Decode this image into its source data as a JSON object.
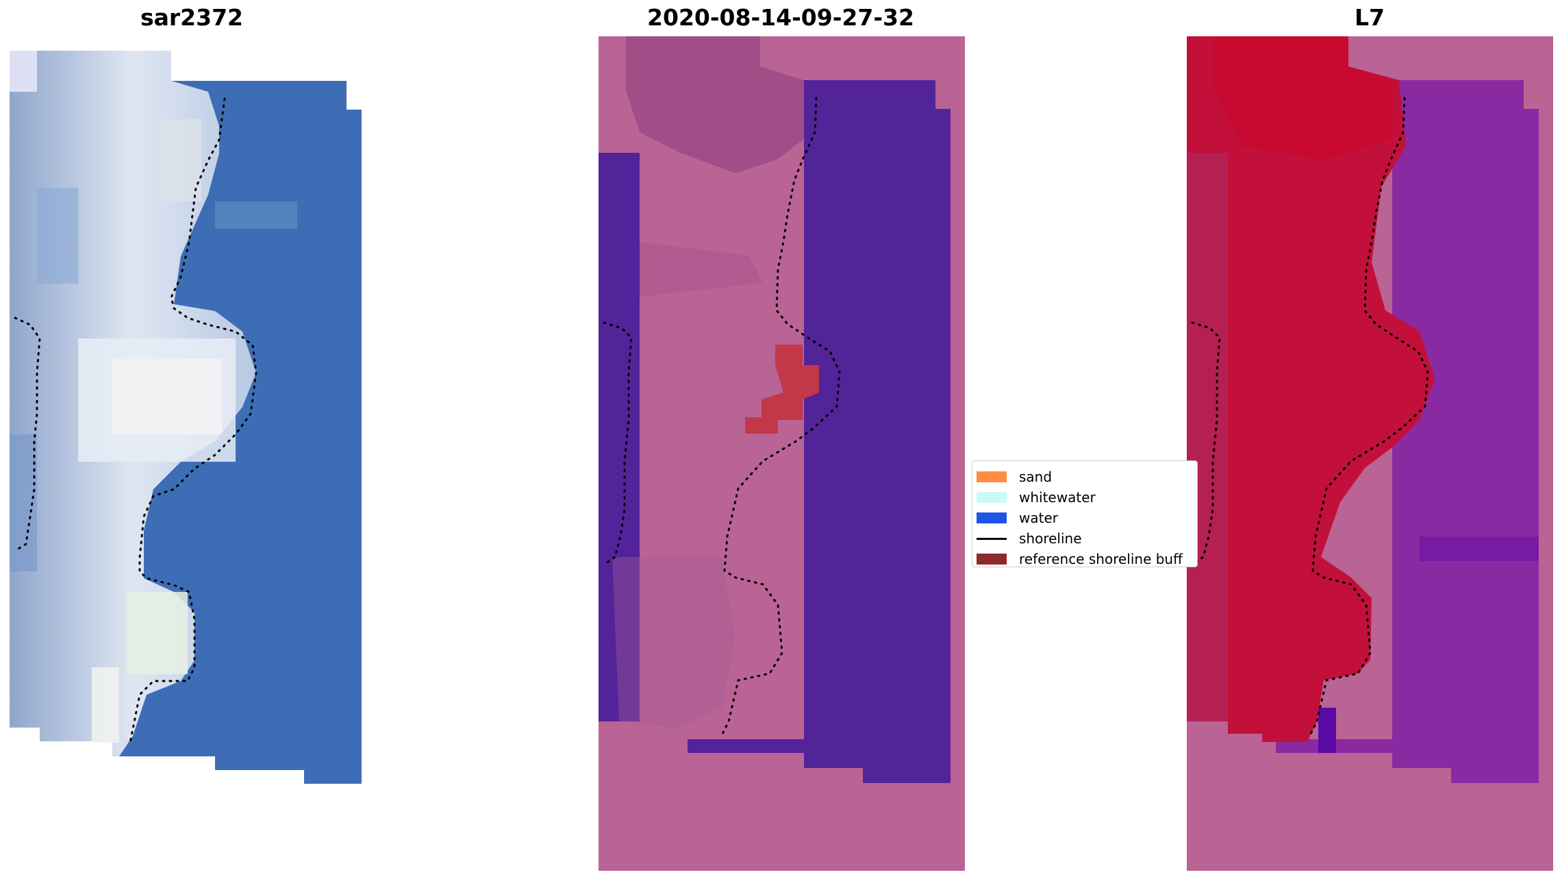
{
  "panels": [
    {
      "title": "sar2372"
    },
    {
      "title": "2020-08-14-09-27-32"
    },
    {
      "title": "L7"
    }
  ],
  "legend": {
    "items": [
      {
        "label": "sand",
        "color": "#ff8c40"
      },
      {
        "label": "whitewater",
        "color": "#c8fafa"
      },
      {
        "label": "water",
        "color": "#1e55e6"
      },
      {
        "label": "shoreline",
        "color": "#000000"
      },
      {
        "label": "reference shoreline buff",
        "color": "#8c2a2e"
      }
    ]
  },
  "colors": {
    "sky_blue": "#3d6eb5",
    "nodata_pink": "#b96494",
    "water_purple": "#53239a",
    "land_red": "#c2103a",
    "water_violet": "#8a2aa2"
  }
}
